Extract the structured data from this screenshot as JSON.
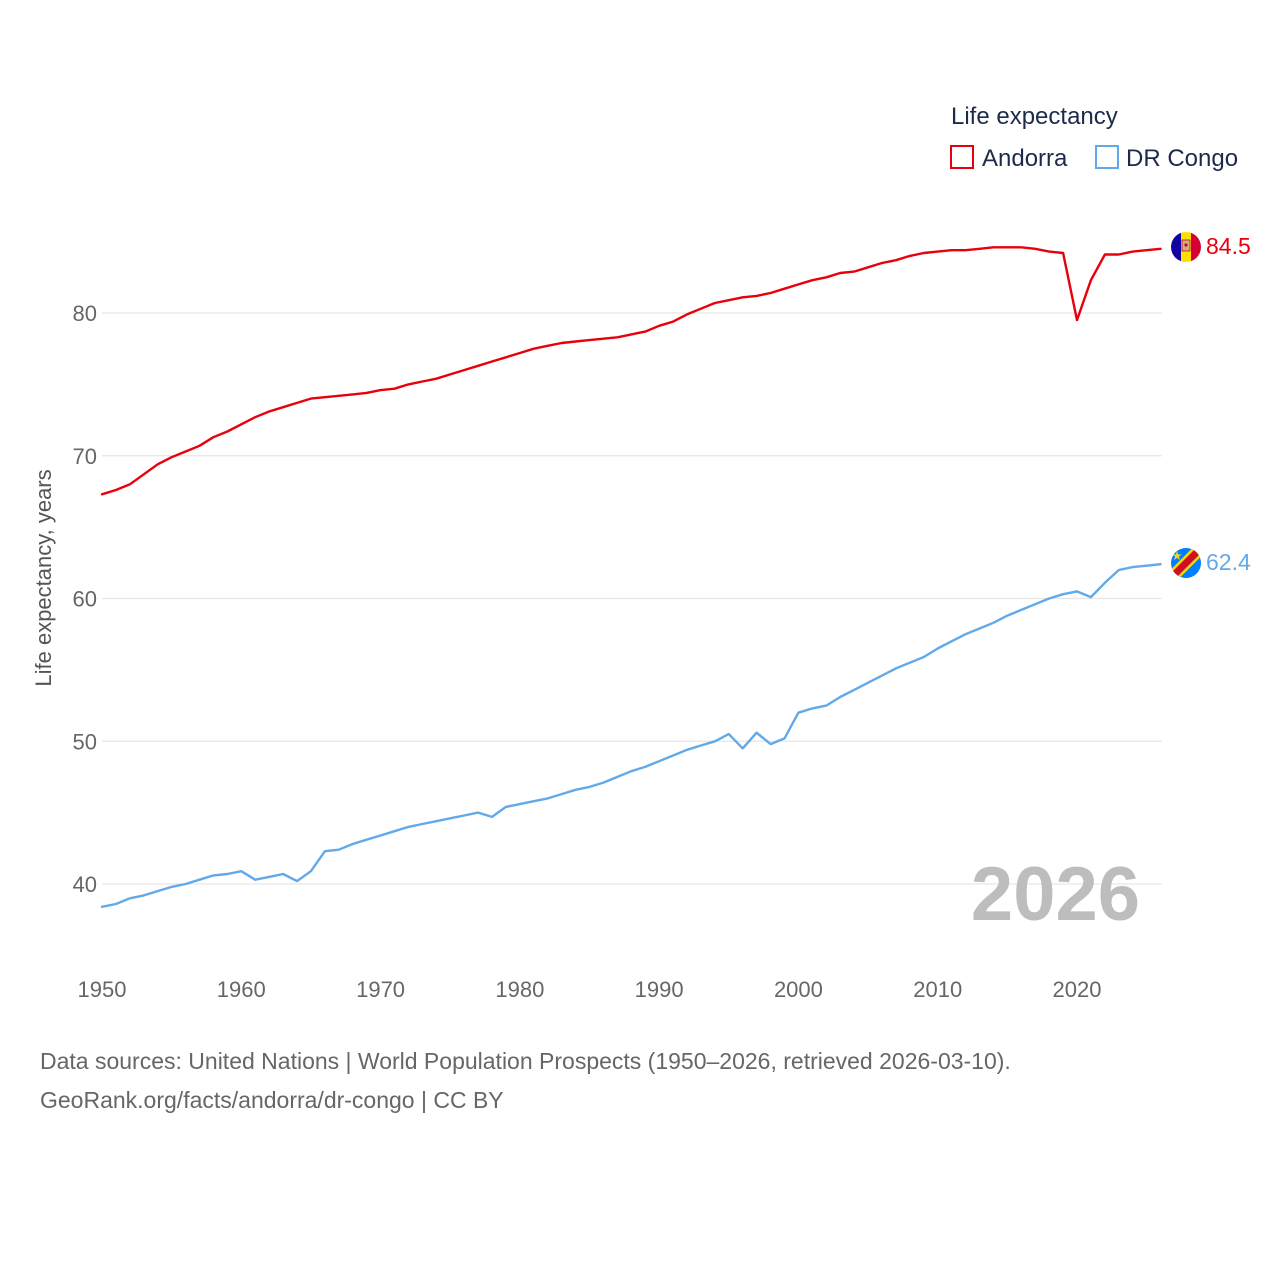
{
  "chart_data": {
    "type": "line",
    "legend_title": "Life expectancy",
    "ylabel": "Life expectancy, years",
    "xlim": [
      1950,
      2026
    ],
    "ylim": [
      35,
      87
    ],
    "yticks": [
      40,
      50,
      60,
      70,
      80
    ],
    "xticks": [
      1950,
      1960,
      1970,
      1980,
      1990,
      2000,
      2010,
      2020
    ],
    "current_year": "2026",
    "x": [
      1950,
      1951,
      1952,
      1953,
      1954,
      1955,
      1956,
      1957,
      1958,
      1959,
      1960,
      1961,
      1962,
      1963,
      1964,
      1965,
      1966,
      1967,
      1968,
      1969,
      1970,
      1971,
      1972,
      1973,
      1974,
      1975,
      1976,
      1977,
      1978,
      1979,
      1980,
      1981,
      1982,
      1983,
      1984,
      1985,
      1986,
      1987,
      1988,
      1989,
      1990,
      1991,
      1992,
      1993,
      1994,
      1995,
      1996,
      1997,
      1998,
      1999,
      2000,
      2001,
      2002,
      2003,
      2004,
      2005,
      2006,
      2007,
      2008,
      2009,
      2010,
      2011,
      2012,
      2013,
      2014,
      2015,
      2016,
      2017,
      2018,
      2019,
      2020,
      2021,
      2022,
      2023,
      2024,
      2025,
      2026
    ],
    "series": [
      {
        "name": "Andorra",
        "color": "#e8000b",
        "end_label": "84.5",
        "values": [
          67.3,
          67.6,
          68.0,
          68.7,
          69.4,
          69.9,
          70.3,
          70.7,
          71.3,
          71.7,
          72.2,
          72.7,
          73.1,
          73.4,
          73.7,
          74.0,
          74.1,
          74.2,
          74.3,
          74.4,
          74.6,
          74.7,
          75.0,
          75.2,
          75.4,
          75.7,
          76.0,
          76.3,
          76.6,
          76.9,
          77.2,
          77.5,
          77.7,
          77.9,
          78.0,
          78.1,
          78.2,
          78.3,
          78.5,
          78.7,
          79.1,
          79.4,
          79.9,
          80.3,
          80.7,
          80.9,
          81.1,
          81.2,
          81.4,
          81.7,
          82.0,
          82.3,
          82.5,
          82.8,
          82.9,
          83.2,
          83.5,
          83.7,
          84.0,
          84.2,
          84.3,
          84.4,
          84.4,
          84.5,
          84.6,
          84.6,
          84.6,
          84.5,
          84.3,
          84.2,
          79.5,
          82.3,
          84.1,
          84.1,
          84.3,
          84.4,
          84.5
        ]
      },
      {
        "name": "DR Congo",
        "color": "#62a9e9",
        "end_label": "62.4",
        "values": [
          38.4,
          38.6,
          39.0,
          39.2,
          39.5,
          39.8,
          40.0,
          40.3,
          40.6,
          40.7,
          40.9,
          40.3,
          40.5,
          40.7,
          40.2,
          40.9,
          42.3,
          42.4,
          42.8,
          43.1,
          43.4,
          43.7,
          44.0,
          44.2,
          44.4,
          44.6,
          44.8,
          45.0,
          44.7,
          45.4,
          45.6,
          45.8,
          46.0,
          46.3,
          46.6,
          46.8,
          47.1,
          47.5,
          47.9,
          48.2,
          48.6,
          49.0,
          49.4,
          49.7,
          50.0,
          50.5,
          49.5,
          50.6,
          49.8,
          50.2,
          52.0,
          52.3,
          52.5,
          53.1,
          53.6,
          54.1,
          54.6,
          55.1,
          55.5,
          55.9,
          56.5,
          57.0,
          57.5,
          57.9,
          58.3,
          58.8,
          59.2,
          59.6,
          60.0,
          60.3,
          60.5,
          60.1,
          61.1,
          62.0,
          62.2,
          62.3,
          62.4
        ]
      }
    ]
  },
  "source": {
    "line1": "Data sources: United Nations | World Population Prospects (1950–2026, retrieved 2026-03-10).",
    "line2": "GeoRank.org/facts/andorra/dr-congo | CC BY"
  },
  "icons": {
    "andorra_flag": "andorra-flag-icon",
    "drcongo_flag": "dr-congo-flag-icon"
  }
}
